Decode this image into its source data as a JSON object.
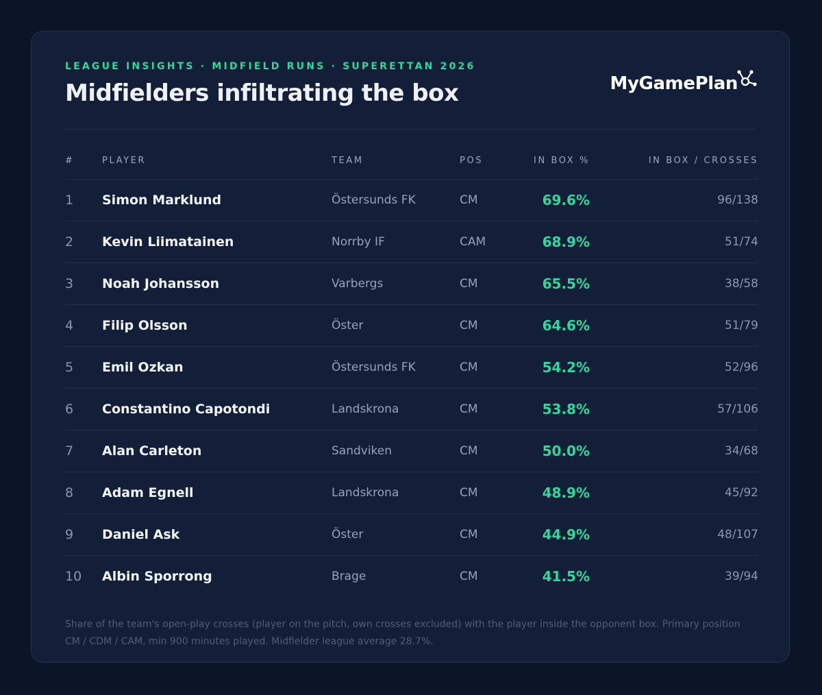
{
  "header": {
    "kicker": "LEAGUE INSIGHTS · MIDFIELD RUNS · SUPERETTAN 2026",
    "title": "Midfielders infiltrating the box",
    "logo_text": "MyGamePlan"
  },
  "table": {
    "columns": [
      "#",
      "PLAYER",
      "TEAM",
      "POS",
      "IN BOX %",
      "IN BOX / CROSSES"
    ],
    "rows": [
      {
        "rank": "1",
        "player": "Simon Marklund",
        "team": "Östersunds FK",
        "pos": "CM",
        "pct": "69.6%",
        "ratio": "96/138"
      },
      {
        "rank": "2",
        "player": "Kevin Liimatainen",
        "team": "Norrby IF",
        "pos": "CAM",
        "pct": "68.9%",
        "ratio": "51/74"
      },
      {
        "rank": "3",
        "player": "Noah Johansson",
        "team": "Varbergs",
        "pos": "CM",
        "pct": "65.5%",
        "ratio": "38/58"
      },
      {
        "rank": "4",
        "player": "Filip Olsson",
        "team": "Öster",
        "pos": "CM",
        "pct": "64.6%",
        "ratio": "51/79"
      },
      {
        "rank": "5",
        "player": "Emil Ozkan",
        "team": "Östersunds FK",
        "pos": "CM",
        "pct": "54.2%",
        "ratio": "52/96"
      },
      {
        "rank": "6",
        "player": "Constantino Capotondi",
        "team": "Landskrona",
        "pos": "CM",
        "pct": "53.8%",
        "ratio": "57/106"
      },
      {
        "rank": "7",
        "player": "Alan Carleton",
        "team": "Sandviken",
        "pos": "CM",
        "pct": "50.0%",
        "ratio": "34/68"
      },
      {
        "rank": "8",
        "player": "Adam Egnell",
        "team": "Landskrona",
        "pos": "CM",
        "pct": "48.9%",
        "ratio": "45/92"
      },
      {
        "rank": "9",
        "player": "Daniel Ask",
        "team": "Öster",
        "pos": "CM",
        "pct": "44.9%",
        "ratio": "48/107"
      },
      {
        "rank": "10",
        "player": "Albin Sporrong",
        "team": "Brage",
        "pos": "CM",
        "pct": "41.5%",
        "ratio": "39/94"
      }
    ]
  },
  "footnote": "Share of the team's open-play crosses (player on the pitch, own crosses excluded) with the player inside the opponent box. Primary position CM / CDM / CAM, min 900 minutes played. Midfielder league average 28.7%.",
  "colors": {
    "background": "#0c1526",
    "card": "#131f38",
    "accent": "#2ed99a",
    "muted": "#95a3b9"
  }
}
